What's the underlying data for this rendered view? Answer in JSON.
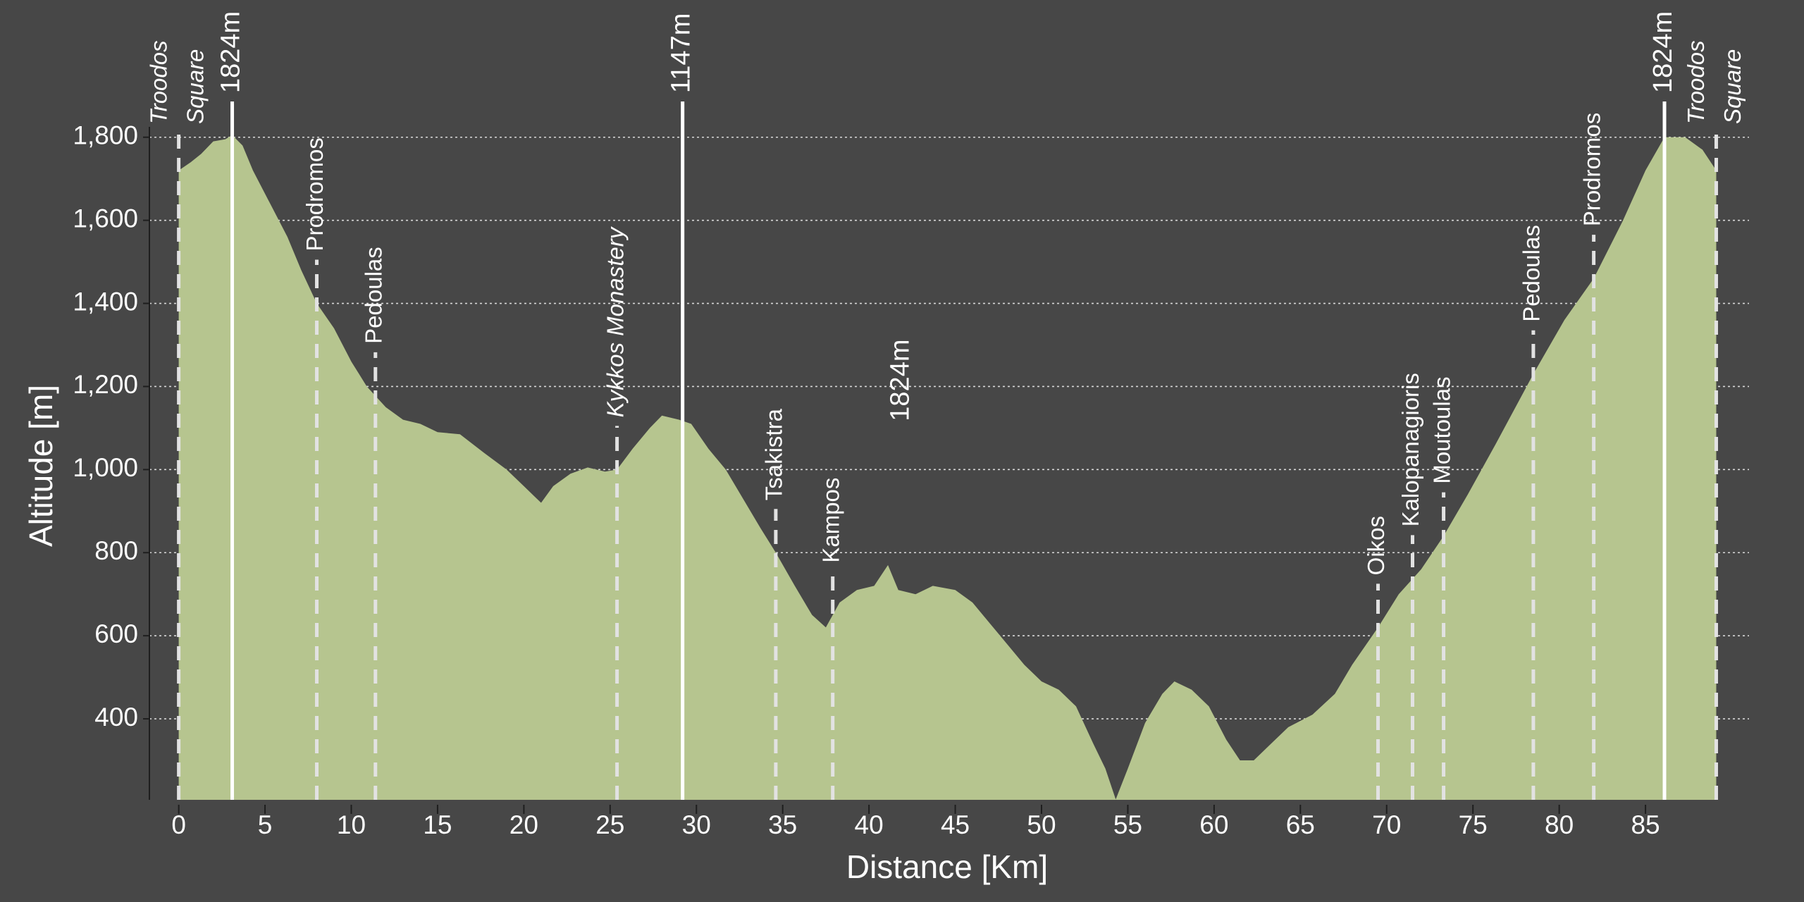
{
  "chart_data": {
    "type": "area",
    "xlabel": "Distance [Km]",
    "ylabel": "Altitude [m]",
    "x": [
      0,
      0.7,
      1.3,
      2.0,
      2.7,
      3.1,
      3.7,
      4.3,
      5.3,
      6.3,
      7.1,
      8.0,
      9.0,
      10.0,
      10.9,
      12.0,
      13.0,
      14.0,
      15.0,
      16.3,
      17.7,
      19.0,
      20.0,
      21.0,
      21.7,
      22.7,
      23.7,
      24.7,
      25.4,
      26.3,
      27.3,
      28.0,
      29.0,
      29.7,
      30.7,
      31.7,
      32.7,
      33.7,
      34.6,
      35.7,
      36.7,
      37.5,
      38.3,
      39.3,
      40.3,
      41.1,
      41.7,
      42.7,
      43.7,
      45.0,
      46.0,
      47.0,
      48.0,
      49.0,
      50.0,
      51.0,
      52.0,
      53.0,
      53.7,
      54.3,
      55.0,
      56.0,
      57.0,
      57.7,
      58.7,
      59.7,
      60.7,
      61.5,
      62.3,
      63.3,
      64.3,
      65.7,
      67.0,
      68.0,
      69.5,
      70.7,
      72.0,
      73.3,
      74.7,
      76.3,
      78.5,
      80.3,
      82.0,
      83.7,
      85.0,
      86.1,
      87.3,
      88.3,
      89.1
    ],
    "values": [
      1720,
      1740,
      1760,
      1790,
      1795,
      1805,
      1780,
      1720,
      1640,
      1560,
      1480,
      1400,
      1340,
      1260,
      1200,
      1150,
      1120,
      1110,
      1090,
      1085,
      1040,
      1000,
      960,
      920,
      960,
      990,
      1005,
      995,
      1000,
      1050,
      1100,
      1130,
      1120,
      1110,
      1050,
      1000,
      930,
      860,
      800,
      720,
      650,
      620,
      680,
      710,
      720,
      770,
      710,
      700,
      720,
      710,
      680,
      630,
      580,
      530,
      490,
      470,
      430,
      340,
      280,
      206,
      280,
      390,
      460,
      490,
      470,
      430,
      350,
      300,
      300,
      340,
      380,
      410,
      460,
      530,
      620,
      700,
      760,
      840,
      940,
      1060,
      1230,
      1360,
      1460,
      1600,
      1720,
      1800,
      1800,
      1770,
      1720
    ],
    "color": "#b6c58f",
    "xlim": [
      -1.7,
      91
    ],
    "ylim": [
      205,
      1825
    ],
    "xticks": [
      0,
      5,
      10,
      15,
      20,
      25,
      30,
      35,
      40,
      45,
      50,
      55,
      60,
      65,
      70,
      75,
      80,
      85
    ],
    "yticks": [
      400,
      600,
      800,
      {
        "value": 1000,
        "label": "1,000"
      },
      {
        "value": 1200,
        "label": "1,200"
      },
      {
        "value": 1400,
        "label": "1,400"
      },
      {
        "value": 1600,
        "label": "1,600"
      },
      {
        "value": 1800,
        "label": "1,800"
      }
    ],
    "grid": true,
    "markers": [
      {
        "x": 0,
        "label": [
          "Troodos",
          "Square"
        ],
        "style": "dashed",
        "italic": true
      },
      {
        "x": 3.1,
        "label": [
          "1824m"
        ],
        "style": "solid",
        "italic": false
      },
      {
        "x": 8.0,
        "label": [
          "Prodromos"
        ],
        "style": "dashed",
        "italic": false
      },
      {
        "x": 11.4,
        "label": [
          "Pedoulas"
        ],
        "style": "dashed",
        "italic": false
      },
      {
        "x": 25.4,
        "label": [
          "Kykkos Monastery"
        ],
        "style": "dashed",
        "italic": true
      },
      {
        "x": 29.2,
        "label": [
          "1147m"
        ],
        "style": "solid",
        "italic": false
      },
      {
        "x": 34.6,
        "label": [
          "Tsakistra"
        ],
        "style": "dashed",
        "italic": false
      },
      {
        "x": 37.9,
        "label": [
          "Kampos"
        ],
        "style": "dashed",
        "italic": false
      },
      {
        "x": 69.5,
        "label": [
          "Oikos"
        ],
        "style": "dashed",
        "italic": false
      },
      {
        "x": 71.5,
        "label": [
          "Kalopanagioris"
        ],
        "style": "dashed",
        "italic": false
      },
      {
        "x": 73.3,
        "label": [
          "Moutoulas"
        ],
        "style": "dashed",
        "italic": false
      },
      {
        "x": 78.5,
        "label": [
          "Pedoulas"
        ],
        "style": "dashed",
        "italic": false
      },
      {
        "x": 82.0,
        "label": [
          "Prodromos"
        ],
        "style": "dashed",
        "italic": false
      },
      {
        "x": 86.1,
        "label": [
          "1824m"
        ],
        "style": "solid",
        "italic": false
      },
      {
        "x": 89.1,
        "label": [
          "Troodos",
          "Square"
        ],
        "style": "dashed",
        "italic": true
      }
    ],
    "annotations": [
      {
        "text": "1824m",
        "x": 41.9,
        "y": 1215
      }
    ]
  }
}
